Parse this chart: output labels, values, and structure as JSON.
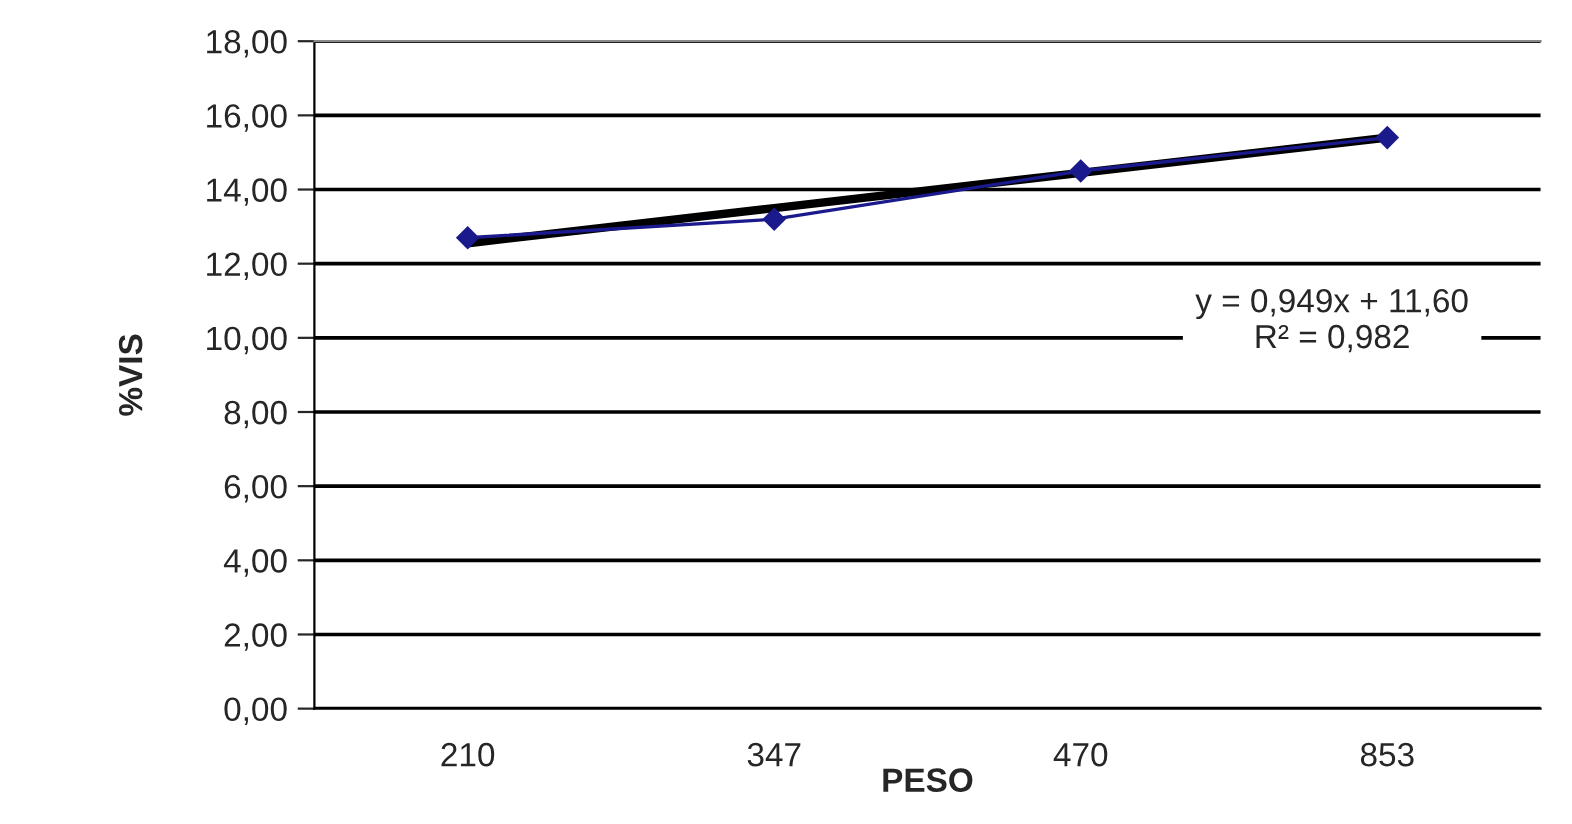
{
  "chart_data": {
    "type": "line",
    "xlabel": "PESO",
    "ylabel": "%VIS",
    "categories": [
      "210",
      "347",
      "470",
      "853"
    ],
    "series": [
      {
        "color": "#1a1a8c",
        "values": [
          12.7,
          13.2,
          14.5,
          15.4
        ],
        "marker": "diamond"
      },
      {
        "type": "line",
        "color": "#000000",
        "values": [
          12.55,
          13.5,
          14.45,
          15.4
        ],
        "marker": "none"
      }
    ],
    "ylim": [
      0,
      18
    ],
    "yticks": [
      {
        "value": 0,
        "label": "0,00"
      },
      {
        "value": 2,
        "label": "2,00"
      },
      {
        "value": 4,
        "label": "4,00"
      },
      {
        "value": 6,
        "label": "6,00"
      },
      {
        "value": 8,
        "label": "8,00"
      },
      {
        "value": 10,
        "label": "10,00"
      },
      {
        "value": 12,
        "label": "12,00"
      },
      {
        "value": 14,
        "label": "14,00"
      },
      {
        "value": 16,
        "label": "16,00"
      },
      {
        "value": 18,
        "label": "18,00"
      }
    ],
    "grid": "y",
    "annotations": [
      "y = 0,949x + 11,60\nR² = 0,982"
    ]
  }
}
